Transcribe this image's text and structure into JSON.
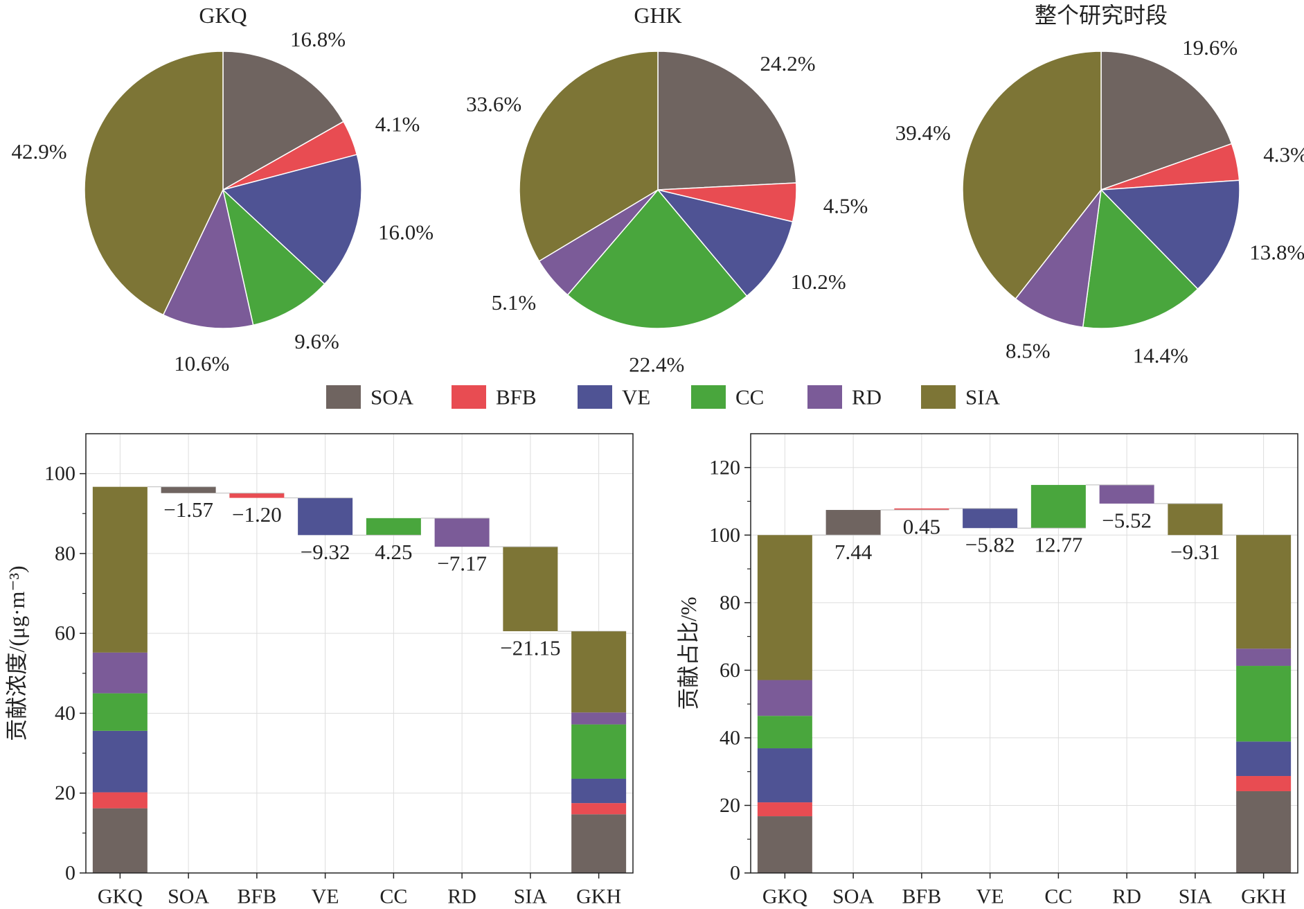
{
  "colors": {
    "SOA": "#6f6460",
    "BFB": "#e84c52",
    "VE": "#4f5394",
    "CC": "#49a63d",
    "RD": "#7b5b98",
    "SIA": "#7d7536"
  },
  "legend": [
    {
      "key": "SOA",
      "label": "SOA"
    },
    {
      "key": "BFB",
      "label": "BFB"
    },
    {
      "key": "VE",
      "label": "VE"
    },
    {
      "key": "CC",
      "label": "CC"
    },
    {
      "key": "RD",
      "label": "RD"
    },
    {
      "key": "SIA",
      "label": "SIA"
    }
  ],
  "chart_data": [
    {
      "type": "pie",
      "title": "GKQ",
      "categories": [
        "SOA",
        "BFB",
        "VE",
        "CC",
        "RD",
        "SIA"
      ],
      "values": [
        16.8,
        4.1,
        16.0,
        9.6,
        10.6,
        42.9
      ],
      "labels": [
        "16.8%",
        "4.1%",
        "16.0%",
        "9.6%",
        "10.6%",
        "42.9%"
      ]
    },
    {
      "type": "pie",
      "title": "GHK",
      "categories": [
        "SOA",
        "BFB",
        "VE",
        "CC",
        "RD",
        "SIA"
      ],
      "values": [
        24.2,
        4.5,
        10.2,
        22.4,
        5.1,
        33.6
      ],
      "labels": [
        "24.2%",
        "4.5%",
        "10.2%",
        "22.4%",
        "5.1%",
        "33.6%"
      ]
    },
    {
      "type": "pie",
      "title": "整个研究时段",
      "categories": [
        "SOA",
        "BFB",
        "VE",
        "CC",
        "RD",
        "SIA"
      ],
      "values": [
        19.6,
        4.3,
        13.8,
        14.4,
        8.5,
        39.4
      ],
      "labels": [
        "19.6%",
        "4.3%",
        "13.8%",
        "14.4%",
        "8.5%",
        "39.4%"
      ]
    },
    {
      "type": "bar",
      "subtype": "waterfall",
      "ylabel": "贡献浓度/(μg·m⁻³)",
      "ylim": [
        0,
        110
      ],
      "yticks": [
        0,
        20,
        40,
        60,
        80,
        100
      ],
      "grid": true,
      "categories": [
        "GKQ",
        "SOA",
        "BFB",
        "VE",
        "CC",
        "RD",
        "SIA",
        "GKH"
      ],
      "start_stack": {
        "SOA": 16.2,
        "BFB": 4.0,
        "VE": 15.4,
        "CC": 9.4,
        "RD": 10.2,
        "SIA": 41.5
      },
      "steps": [
        {
          "key": "SOA",
          "change": -1.57,
          "label": "−1.57"
        },
        {
          "key": "BFB",
          "change": -1.2,
          "label": "−1.20"
        },
        {
          "key": "VE",
          "change": -9.32,
          "label": "−9.32"
        },
        {
          "key": "CC",
          "change": 4.25,
          "label": "4.25"
        },
        {
          "key": "RD",
          "change": -7.17,
          "label": "−7.17"
        },
        {
          "key": "SIA",
          "change": -21.15,
          "label": "−21.15"
        }
      ],
      "end_stack": {
        "SOA": 14.7,
        "BFB": 2.8,
        "VE": 6.1,
        "CC": 13.6,
        "RD": 3.0,
        "SIA": 20.3
      }
    },
    {
      "type": "bar",
      "subtype": "waterfall",
      "ylabel": "贡献占比/%",
      "ylim": [
        0,
        130
      ],
      "yticks": [
        0,
        20,
        40,
        60,
        80,
        100,
        120
      ],
      "grid": true,
      "categories": [
        "GKQ",
        "SOA",
        "BFB",
        "VE",
        "CC",
        "RD",
        "SIA",
        "GKH"
      ],
      "start_stack": {
        "SOA": 16.8,
        "BFB": 4.1,
        "VE": 16.0,
        "CC": 9.6,
        "RD": 10.6,
        "SIA": 42.9
      },
      "steps": [
        {
          "key": "SOA",
          "change": 7.44,
          "label": "7.44"
        },
        {
          "key": "BFB",
          "change": 0.45,
          "label": "0.45"
        },
        {
          "key": "VE",
          "change": -5.82,
          "label": "−5.82"
        },
        {
          "key": "CC",
          "change": 12.77,
          "label": "12.77"
        },
        {
          "key": "RD",
          "change": -5.52,
          "label": "−5.52"
        },
        {
          "key": "SIA",
          "change": -9.31,
          "label": "−9.31"
        }
      ],
      "end_stack": {
        "SOA": 24.2,
        "BFB": 4.5,
        "VE": 10.2,
        "CC": 22.4,
        "RD": 5.1,
        "SIA": 33.6
      }
    }
  ]
}
